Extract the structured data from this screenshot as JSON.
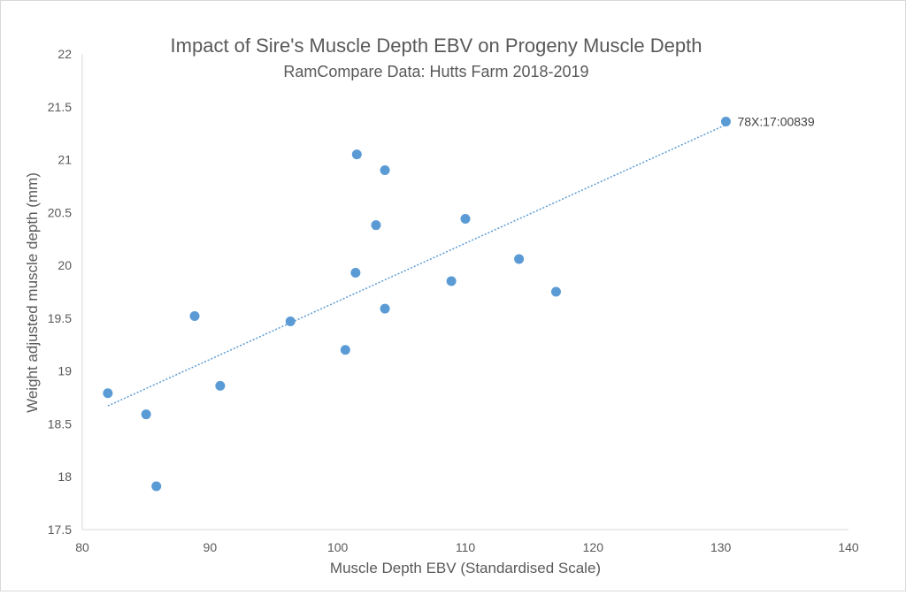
{
  "chart_data": {
    "type": "scatter",
    "title": "Impact of Sire's Muscle Depth EBV on Progeny Muscle Depth",
    "subtitle": "RamCompare Data: Hutts Farm 2018-2019",
    "xlabel": "Muscle Depth EBV (Standardised Scale)",
    "ylabel": "Weight adjusted muscle depth (mm)",
    "xlim": [
      80,
      140
    ],
    "ylim": [
      17.5,
      22
    ],
    "xticks": [
      80,
      90,
      100,
      110,
      120,
      130,
      140
    ],
    "yticks": [
      17.5,
      18,
      18.5,
      19,
      19.5,
      20,
      20.5,
      21,
      21.5,
      22
    ],
    "grid": false,
    "legend": "none",
    "points": [
      {
        "x": 82.0,
        "y": 18.79
      },
      {
        "x": 85.0,
        "y": 18.59
      },
      {
        "x": 85.8,
        "y": 17.91
      },
      {
        "x": 88.8,
        "y": 19.52
      },
      {
        "x": 90.8,
        "y": 18.86
      },
      {
        "x": 96.3,
        "y": 19.47
      },
      {
        "x": 100.6,
        "y": 19.2
      },
      {
        "x": 101.4,
        "y": 19.93
      },
      {
        "x": 101.5,
        "y": 21.05
      },
      {
        "x": 103.0,
        "y": 20.38
      },
      {
        "x": 103.7,
        "y": 19.59
      },
      {
        "x": 103.7,
        "y": 20.9
      },
      {
        "x": 108.9,
        "y": 19.85
      },
      {
        "x": 110.0,
        "y": 20.44
      },
      {
        "x": 114.2,
        "y": 20.06
      },
      {
        "x": 117.1,
        "y": 19.75
      },
      {
        "x": 130.4,
        "y": 21.36,
        "label": "78X:17:00839"
      }
    ],
    "trendline": {
      "type": "linear",
      "style": "dotted",
      "x": [
        82.0,
        130.4
      ],
      "y": [
        18.67,
        21.33
      ]
    },
    "colors": {
      "marker": "#5b9bd5",
      "trendline": "#5b9bd5",
      "text": "#595959",
      "axis": "#d9d9d9"
    }
  }
}
